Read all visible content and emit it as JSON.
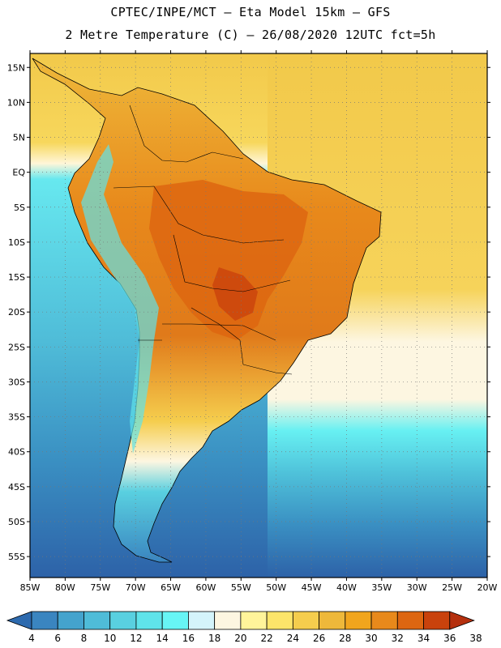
{
  "header": {
    "line1": "CPTEC/INPE/MCT –  Eta Model 15km – GFS",
    "line2": "2 Metre Temperature (C) – 26/08/2020 12UTC fct=5h"
  },
  "map": {
    "lon_range": [
      -85,
      -20
    ],
    "lat_range": [
      -58,
      17
    ],
    "lat_ticks": [
      {
        "value": 15,
        "label": "15N"
      },
      {
        "value": 10,
        "label": "10N"
      },
      {
        "value": 5,
        "label": "5N"
      },
      {
        "value": 0,
        "label": "EQ"
      },
      {
        "value": -5,
        "label": "5S"
      },
      {
        "value": -10,
        "label": "10S"
      },
      {
        "value": -15,
        "label": "15S"
      },
      {
        "value": -20,
        "label": "20S"
      },
      {
        "value": -25,
        "label": "25S"
      },
      {
        "value": -30,
        "label": "30S"
      },
      {
        "value": -35,
        "label": "35S"
      },
      {
        "value": -40,
        "label": "40S"
      },
      {
        "value": -45,
        "label": "45S"
      },
      {
        "value": -50,
        "label": "50S"
      },
      {
        "value": -55,
        "label": "55S"
      }
    ],
    "lon_ticks": [
      {
        "value": -85,
        "label": "85W"
      },
      {
        "value": -80,
        "label": "80W"
      },
      {
        "value": -75,
        "label": "75W"
      },
      {
        "value": -70,
        "label": "70W"
      },
      {
        "value": -65,
        "label": "65W"
      },
      {
        "value": -60,
        "label": "60W"
      },
      {
        "value": -55,
        "label": "55W"
      },
      {
        "value": -50,
        "label": "50W"
      },
      {
        "value": -45,
        "label": "45W"
      },
      {
        "value": -40,
        "label": "40W"
      },
      {
        "value": -35,
        "label": "35W"
      },
      {
        "value": -30,
        "label": "30W"
      },
      {
        "value": -25,
        "label": "25W"
      },
      {
        "value": -20,
        "label": "20W"
      }
    ]
  },
  "colorbar": {
    "colors": [
      "#2d6aae",
      "#3a85c0",
      "#44a3cd",
      "#4fbcd8",
      "#59d0e0",
      "#5fe3ea",
      "#67f5f5",
      "#d4f4fb",
      "#fdf6e1",
      "#fff49a",
      "#fde56a",
      "#f5cd4d",
      "#eeb83a",
      "#f1a51d",
      "#e8891b",
      "#dd6611",
      "#c9420c",
      "#b5300e"
    ],
    "labels": [
      "4",
      "6",
      "8",
      "10",
      "12",
      "14",
      "16",
      "18",
      "20",
      "22",
      "24",
      "26",
      "28",
      "30",
      "32",
      "34",
      "36",
      "38"
    ]
  }
}
